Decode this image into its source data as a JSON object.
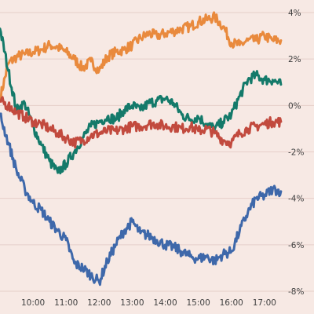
{
  "chart_data": {
    "type": "line",
    "title": "",
    "xlabel": "",
    "ylabel": "",
    "x_tick_labels": [
      "10:00",
      "11:00",
      "12:00",
      "13:00",
      "14:00",
      "15:00",
      "16:00",
      "17:00"
    ],
    "x_ticks_hours": [
      10,
      11,
      12,
      13,
      14,
      15,
      16,
      17
    ],
    "xlim_hours": [
      9.0,
      17.55
    ],
    "y_tick_labels": [
      "4%",
      "2%",
      "0%",
      "-2%",
      "-4%",
      "-6%",
      "-8%"
    ],
    "y_ticks": [
      4,
      2,
      0,
      -2,
      -4,
      -6,
      -8
    ],
    "ylim": [
      -8,
      4
    ],
    "y_axis_position": "right",
    "grid": "horizontal",
    "legend": "none",
    "x_hours": [
      9.0,
      9.25,
      9.5,
      9.75,
      10.0,
      10.25,
      10.5,
      10.75,
      11.0,
      11.25,
      11.5,
      11.75,
      12.0,
      12.25,
      12.5,
      12.75,
      13.0,
      13.25,
      13.5,
      13.75,
      14.0,
      14.25,
      14.5,
      14.75,
      15.0,
      15.25,
      15.5,
      15.75,
      16.0,
      16.25,
      16.5,
      16.75,
      17.0,
      17.25,
      17.5
    ],
    "series": [
      {
        "color": "#e98a3d",
        "values": [
          0.3,
          1.8,
          2.1,
          2.2,
          2.3,
          2.4,
          2.6,
          2.5,
          2.3,
          2.0,
          1.6,
          1.9,
          1.5,
          2.1,
          2.3,
          2.4,
          2.6,
          2.9,
          3.1,
          3.0,
          3.1,
          3.2,
          3.3,
          3.4,
          3.6,
          3.7,
          3.8,
          3.4,
          2.7,
          2.6,
          2.8,
          2.8,
          3.0,
          2.8,
          2.8
        ]
      },
      {
        "color": "#147a6a",
        "values": [
          3.3,
          1.5,
          -0.2,
          0.1,
          -0.9,
          -1.7,
          -2.4,
          -2.9,
          -2.5,
          -2.0,
          -1.4,
          -0.9,
          -0.7,
          -0.5,
          -0.6,
          -0.2,
          0.0,
          -0.2,
          0.1,
          0.2,
          0.3,
          0.1,
          -0.4,
          -0.6,
          -0.5,
          -0.8,
          -1.0,
          -0.7,
          -0.4,
          0.4,
          1.1,
          1.3,
          1.1,
          1.1,
          0.9
        ]
      },
      {
        "color": "#c24a3e",
        "values": [
          0.2,
          0.0,
          -0.3,
          -0.5,
          -0.7,
          -0.8,
          -1.0,
          -1.2,
          -1.4,
          -1.6,
          -1.5,
          -1.3,
          -1.2,
          -1.1,
          -1.1,
          -1.0,
          -0.9,
          -0.9,
          -0.8,
          -0.8,
          -0.9,
          -0.9,
          -1.0,
          -0.9,
          -1.1,
          -1.0,
          -1.2,
          -1.5,
          -1.6,
          -1.2,
          -1.0,
          -0.9,
          -0.8,
          -0.7,
          -0.7
        ]
      },
      {
        "color": "#3e68aa",
        "values": [
          -0.4,
          -1.6,
          -2.8,
          -3.6,
          -4.2,
          -4.5,
          -5.0,
          -5.4,
          -5.8,
          -6.8,
          -7.0,
          -7.3,
          -7.6,
          -6.7,
          -6.0,
          -5.4,
          -5.0,
          -5.5,
          -5.6,
          -5.8,
          -6.0,
          -6.1,
          -6.3,
          -6.5,
          -6.6,
          -6.5,
          -6.7,
          -6.4,
          -6.3,
          -5.4,
          -4.6,
          -4.0,
          -3.9,
          -3.6,
          -3.7
        ]
      }
    ]
  }
}
